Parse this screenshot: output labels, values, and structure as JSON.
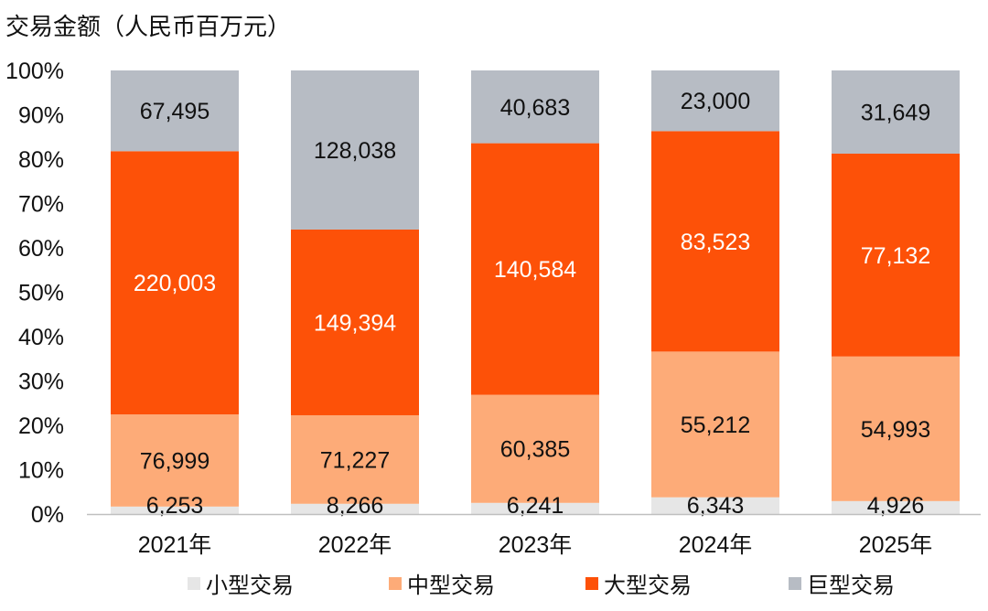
{
  "chart_data": {
    "type": "bar",
    "stacked": true,
    "normalized": true,
    "title": "交易金额（人民币百万元）",
    "xlabel": "",
    "ylabel": "",
    "ylim": [
      0,
      100
    ],
    "y_ticks": [
      "0%",
      "10%",
      "20%",
      "30%",
      "40%",
      "50%",
      "60%",
      "70%",
      "80%",
      "90%",
      "100%"
    ],
    "categories": [
      "2021年",
      "2022年",
      "2023年",
      "2024年",
      "2025年"
    ],
    "series": [
      {
        "name": "小型交易",
        "color": "#e6e6e6",
        "label_color": "#111111",
        "values": [
          6253,
          8266,
          6241,
          6343,
          4926
        ],
        "labels": [
          "6,253",
          "8,266",
          "6,241",
          "6,343",
          "4,926"
        ]
      },
      {
        "name": "中型交易",
        "color": "#fdab78",
        "label_color": "#111111",
        "values": [
          76999,
          71227,
          60385,
          55212,
          54993
        ],
        "labels": [
          "76,999",
          "71,227",
          "60,385",
          "55,212",
          "54,993"
        ]
      },
      {
        "name": "大型交易",
        "color": "#fd5108",
        "label_color": "#ffffff",
        "values": [
          220003,
          149394,
          140584,
          83523,
          77132
        ],
        "labels": [
          "220,003",
          "149,394",
          "140,584",
          "83,523",
          "77,132"
        ]
      },
      {
        "name": "巨型交易",
        "color": "#b7bcc4",
        "label_color": "#111111",
        "values": [
          67495,
          128038,
          40683,
          23000,
          31649
        ],
        "labels": [
          "67,495",
          "128,038",
          "40,683",
          "23,000",
          "31,649"
        ]
      }
    ],
    "legend_position": "bottom"
  }
}
